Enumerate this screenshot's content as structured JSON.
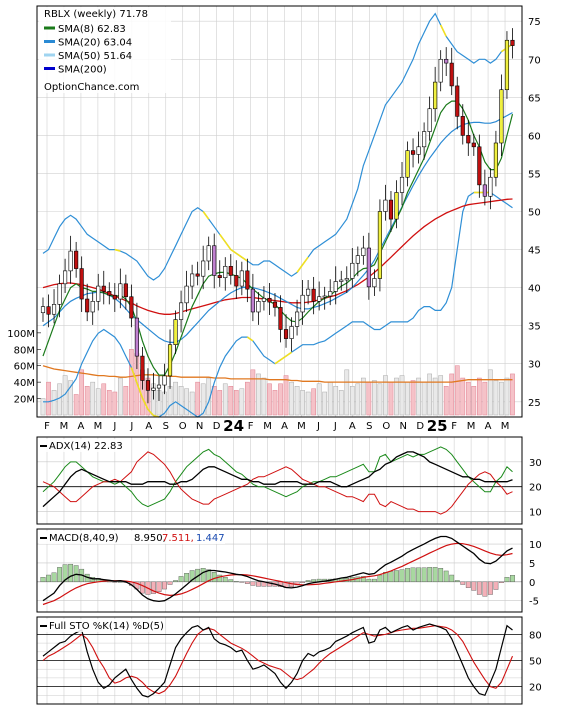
{
  "chart_data": {
    "type": "candlestick",
    "symbol": "RBLX (weekly) 71.78",
    "watermark": "OptionChance.com",
    "legend": [
      {
        "label": "SMA(8) 62.83",
        "color": "#1a7a1a"
      },
      {
        "label": "SMA(20) 63.04",
        "color": "#2a8ad4"
      },
      {
        "label": "SMA(50) 51.64",
        "color": "#9fd4f0"
      },
      {
        "label": "SMA(200)",
        "color": "#0000cc"
      }
    ],
    "x_ticks": [
      "F",
      "M",
      "A",
      "M",
      "J",
      "J",
      "A",
      "S",
      "O",
      "N",
      "D",
      "24",
      "F",
      "M",
      "A",
      "M",
      "J",
      "J",
      "A",
      "S",
      "O",
      "N",
      "D",
      "25",
      "F",
      "M",
      "A",
      "M"
    ],
    "x_bold_ticks": [
      "24",
      "25"
    ],
    "price_axis": {
      "ylim": [
        23,
        77
      ],
      "ticks": [
        25,
        30,
        35,
        40,
        45,
        50,
        55,
        60,
        65,
        70,
        75
      ]
    },
    "volume_axis": {
      "ylim": [
        0,
        140
      ],
      "ticks": [
        "100M",
        "80M",
        "60M",
        "40M",
        "20M"
      ],
      "tick_values": [
        100,
        80,
        60,
        40,
        20
      ]
    },
    "close": [
      37.5,
      36.5,
      37.8,
      40.5,
      42.2,
      44.8,
      42.5,
      38.5,
      36.8,
      38.2,
      40.2,
      39.5,
      39.0,
      38.5,
      40.5,
      38.8,
      36.0,
      31.0,
      27.8,
      26.5,
      26.8,
      27.2,
      28.4,
      32.5,
      35.8,
      38.0,
      40.2,
      41.8,
      41.5,
      43.5,
      45.5,
      41.6,
      41.3,
      42.8,
      41.6,
      40.2,
      42.2,
      39.8,
      36.8,
      38.2,
      38.6,
      38.1,
      37.4,
      34.5,
      33.3,
      34.9,
      36.8,
      39.0,
      39.8,
      38.2,
      38.8,
      38.9,
      39.5,
      40.8,
      41.0,
      41.2,
      43.2,
      44.2,
      45.2,
      40.1,
      41.2,
      50.0,
      51.5,
      49.0,
      52.5,
      54.5,
      58.0,
      57.5,
      58.5,
      60.5,
      63.5,
      67.0,
      70.0,
      69.5,
      66.5,
      62.5,
      60.0,
      59.0,
      58.5,
      53.5,
      52.0,
      54.5,
      59.0,
      66.0,
      72.5,
      71.8
    ],
    "sma8": [
      31.0,
      33.0,
      35.0,
      37.0,
      38.5,
      40.0,
      40.5,
      40.0,
      39.8,
      39.5,
      39.5,
      39.3,
      39.0,
      38.8,
      39.0,
      38.5,
      37.5,
      35.5,
      33.0,
      31.0,
      29.5,
      28.5,
      28.5,
      29.8,
      31.5,
      33.5,
      35.5,
      37.5,
      39.0,
      40.5,
      41.5,
      41.8,
      42.0,
      42.0,
      41.8,
      41.5,
      41.2,
      40.5,
      39.8,
      39.2,
      38.6,
      38.2,
      37.8,
      37.0,
      36.2,
      35.6,
      35.5,
      36.0,
      36.8,
      37.5,
      38.2,
      38.6,
      39.0,
      39.6,
      40.2,
      40.6,
      41.2,
      42.0,
      42.5,
      42.6,
      43.0,
      44.5,
      46.0,
      47.5,
      49.0,
      50.5,
      52.5,
      54.0,
      55.5,
      57.0,
      59.0,
      61.0,
      63.0,
      64.0,
      64.5,
      64.5,
      63.5,
      62.0,
      60.0,
      58.5,
      56.5,
      55.5,
      55.5,
      57.0,
      60.0,
      62.8
    ],
    "sma20": [
      35.0,
      35.5,
      36.0,
      36.8,
      37.6,
      38.2,
      38.6,
      38.9,
      39.2,
      39.3,
      39.4,
      39.3,
      39.0,
      38.6,
      38.0,
      37.2,
      36.4,
      35.8,
      35.2,
      34.6,
      34.0,
      33.4,
      33.0,
      32.8,
      32.8,
      33.2,
      33.8,
      34.6,
      35.4,
      36.2,
      37.0,
      37.6,
      38.2,
      38.8,
      39.3,
      39.7,
      40.0,
      40.1,
      40.0,
      39.8,
      39.6,
      39.3,
      39.0,
      38.6,
      38.2,
      37.8,
      37.4,
      37.2,
      37.2,
      37.4,
      37.6,
      37.9,
      38.2,
      38.6,
      39.0,
      39.4,
      40.0,
      40.8,
      41.6,
      42.5,
      43.6,
      45.0,
      46.4,
      47.8,
      49.2,
      50.6,
      52.0,
      53.4,
      54.7,
      55.9,
      57.0,
      58.0,
      59.0,
      59.8,
      60.5,
      61.0,
      61.4,
      61.6,
      61.7,
      61.7,
      61.6,
      61.6,
      61.8,
      62.2,
      62.6,
      63.0
    ],
    "sma50": [
      40.0,
      40.2,
      40.4,
      40.5,
      40.6,
      40.6,
      40.5,
      40.4,
      40.2,
      40.0,
      39.8,
      39.5,
      39.2,
      38.9,
      38.6,
      38.3,
      38.0,
      37.6,
      37.3,
      37.0,
      36.8,
      36.6,
      36.5,
      36.5,
      36.6,
      36.8,
      37.0,
      37.2,
      37.4,
      37.6,
      37.8,
      38.0,
      38.2,
      38.4,
      38.5,
      38.6,
      38.7,
      38.7,
      38.7,
      38.6,
      38.5,
      38.4,
      38.3,
      38.2,
      38.1,
      38.0,
      38.0,
      38.0,
      38.1,
      38.2,
      38.4,
      38.6,
      38.8,
      39.0,
      39.3,
      39.6,
      40.0,
      40.4,
      40.9,
      41.4,
      42.0,
      42.6,
      43.3,
      44.0,
      44.7,
      45.4,
      46.1,
      46.8,
      47.4,
      48.0,
      48.5,
      49.0,
      49.4,
      49.8,
      50.1,
      50.4,
      50.7,
      50.9,
      51.0,
      51.1,
      51.2,
      51.3,
      51.4,
      51.5,
      51.6,
      51.64
    ],
    "upper_band": [
      44.5,
      45.0,
      46.5,
      48.0,
      49.0,
      49.5,
      49.0,
      48.0,
      47.0,
      46.5,
      46.0,
      45.5,
      45.0,
      45.0,
      44.8,
      44.5,
      44.0,
      43.5,
      42.5,
      41.5,
      41.0,
      41.5,
      42.5,
      44.0,
      45.5,
      47.0,
      48.5,
      50.0,
      50.5,
      50.0,
      49.0,
      48.0,
      47.0,
      46.0,
      45.0,
      44.5,
      44.0,
      43.5,
      43.0,
      43.0,
      43.5,
      43.5,
      43.0,
      42.5,
      42.0,
      41.5,
      42.0,
      43.0,
      44.0,
      45.0,
      45.5,
      46.0,
      46.5,
      47.0,
      48.0,
      49.0,
      51.0,
      53.0,
      56.0,
      58.0,
      60.0,
      62.0,
      64.0,
      65.0,
      66.0,
      67.0,
      68.5,
      70.0,
      72.0,
      73.5,
      75.0,
      76.0,
      74.5,
      73.0,
      72.0,
      71.0,
      70.5,
      70.0,
      69.5,
      70.0,
      70.0,
      69.5,
      70.0,
      71.0,
      71.5,
      72.0
    ],
    "lower_band": [
      25.0,
      25.0,
      25.2,
      25.5,
      26.0,
      27.0,
      28.0,
      30.0,
      31.5,
      33.0,
      34.0,
      34.5,
      34.0,
      33.5,
      32.5,
      31.0,
      29.5,
      27.5,
      25.5,
      24.0,
      23.2,
      23.0,
      23.5,
      24.5,
      25.0,
      24.5,
      24.0,
      23.5,
      23.0,
      23.5,
      25.0,
      27.5,
      29.5,
      31.0,
      32.0,
      33.0,
      33.5,
      33.5,
      33.0,
      32.0,
      31.0,
      30.5,
      30.0,
      30.5,
      31.0,
      31.5,
      32.0,
      32.5,
      32.5,
      32.5,
      32.8,
      33.0,
      33.5,
      34.0,
      34.5,
      35.0,
      35.5,
      35.5,
      35.5,
      35.0,
      34.5,
      34.5,
      35.0,
      35.5,
      35.5,
      35.5,
      35.5,
      36.0,
      37.0,
      37.5,
      37.5,
      37.0,
      37.0,
      38.0,
      40.0,
      45.0,
      50.0,
      52.0,
      52.5,
      52.5,
      52.5,
      52.5,
      52.0,
      51.5,
      51.0,
      50.5
    ],
    "volume": [
      20,
      40,
      30,
      38,
      48,
      42,
      25,
      55,
      35,
      40,
      32,
      38,
      30,
      28,
      45,
      35,
      80,
      75,
      55,
      45,
      38,
      30,
      28,
      35,
      40,
      35,
      32,
      28,
      40,
      38,
      45,
      35,
      30,
      38,
      35,
      30,
      32,
      40,
      55,
      50,
      45,
      38,
      30,
      38,
      48,
      40,
      35,
      30,
      28,
      32,
      38,
      28,
      40,
      35,
      30,
      55,
      35,
      38,
      45,
      40,
      42,
      38,
      48,
      40,
      45,
      48,
      40,
      42,
      45,
      40,
      50,
      45,
      48,
      35,
      50,
      60,
      45,
      40,
      35,
      45,
      40,
      55,
      42,
      40,
      45,
      50
    ],
    "volume_avg": [
      60,
      58,
      56,
      55,
      54,
      53,
      52,
      51,
      50,
      49,
      48,
      48,
      47,
      47,
      46,
      46,
      47,
      48,
      49,
      49,
      49,
      48,
      48,
      47,
      47,
      46,
      46,
      46,
      46,
      46,
      46,
      45,
      45,
      45,
      44,
      44,
      44,
      44,
      44,
      44,
      44,
      43,
      43,
      43,
      43,
      42,
      42,
      41,
      41,
      41,
      41,
      40,
      40,
      40,
      40,
      40,
      40,
      40,
      40,
      40,
      40,
      40,
      40,
      40,
      40,
      40,
      40,
      40,
      40,
      40,
      40,
      40,
      40,
      40,
      40,
      41,
      42,
      43,
      43,
      43,
      43,
      43,
      43,
      43,
      43,
      43
    ],
    "adx": {
      "label": "ADX(14) 22.83",
      "ylim": [
        5,
        40
      ],
      "ticks": [
        10,
        20,
        30
      ],
      "adx": [
        12,
        14,
        16,
        18,
        21,
        24,
        26,
        27,
        26,
        25,
        24,
        23,
        22,
        22,
        22,
        22,
        21,
        21,
        21,
        22,
        22,
        22,
        22,
        21,
        21,
        22,
        22,
        23,
        25,
        27,
        28,
        28,
        27,
        26,
        25,
        24,
        23,
        23,
        22,
        22,
        21,
        21,
        21,
        22,
        22,
        22,
        22,
        21,
        21,
        21,
        22,
        22,
        22,
        21,
        20,
        20,
        21,
        22,
        23,
        24,
        26,
        27,
        29,
        30,
        32,
        33,
        34,
        34,
        33,
        32,
        30,
        29,
        28,
        27,
        26,
        25,
        24,
        24,
        23,
        23,
        22,
        22,
        22,
        22,
        22,
        22.8
      ],
      "plus_di": [
        18,
        20,
        22,
        25,
        28,
        30,
        30,
        28,
        26,
        24,
        23,
        22,
        22,
        21,
        22,
        20,
        18,
        15,
        13,
        12,
        13,
        14,
        15,
        18,
        22,
        25,
        28,
        30,
        32,
        34,
        35,
        33,
        32,
        30,
        28,
        26,
        25,
        23,
        21,
        20,
        20,
        19,
        18,
        17,
        16,
        17,
        18,
        20,
        21,
        22,
        22,
        23,
        24,
        24,
        25,
        26,
        27,
        28,
        29,
        26,
        26,
        32,
        33,
        30,
        31,
        32,
        33,
        32,
        33,
        33,
        34,
        35,
        36,
        35,
        33,
        30,
        27,
        24,
        22,
        20,
        18,
        18,
        22,
        24,
        28,
        26
      ],
      "minus_di": [
        22,
        21,
        20,
        18,
        16,
        14,
        14,
        16,
        18,
        20,
        21,
        22,
        22,
        23,
        22,
        24,
        26,
        30,
        32,
        34,
        33,
        31,
        29,
        26,
        22,
        19,
        17,
        15,
        14,
        13,
        13,
        15,
        16,
        17,
        18,
        19,
        20,
        21,
        23,
        24,
        24,
        25,
        26,
        27,
        28,
        27,
        25,
        23,
        22,
        21,
        20,
        20,
        19,
        18,
        17,
        16,
        16,
        15,
        14,
        17,
        17,
        13,
        12,
        14,
        13,
        12,
        11,
        11,
        10,
        10,
        10,
        10,
        9,
        10,
        12,
        15,
        18,
        21,
        23,
        25,
        26,
        25,
        22,
        20,
        17,
        18
      ]
    },
    "macd": {
      "label": "MACD(8,40,9)",
      "value": "8.950,",
      "signal_value": "7.511,",
      "hist_value": "1.447",
      "ylim": [
        -8,
        14
      ],
      "ticks": [
        10,
        5,
        0,
        -5
      ],
      "macd": [
        -5,
        -4,
        -3,
        -1,
        0.5,
        1.5,
        2,
        1.8,
        1.2,
        0.8,
        0.8,
        0.6,
        0.4,
        0.2,
        0.3,
        0,
        -0.8,
        -2,
        -3.5,
        -4.5,
        -5,
        -5.2,
        -5,
        -4.2,
        -3.2,
        -2,
        -0.8,
        0.5,
        1.5,
        2.5,
        3,
        3,
        2.8,
        2.6,
        2.3,
        2,
        1.8,
        1.4,
        0.8,
        0.3,
        0,
        -0.3,
        -0.6,
        -1,
        -1.5,
        -1.6,
        -1.4,
        -1,
        -0.5,
        -0.2,
        0,
        0.2,
        0.4,
        0.7,
        1,
        1.2,
        1.6,
        2,
        2.4,
        2,
        2.2,
        3.4,
        4.5,
        5.2,
        6,
        6.8,
        7.8,
        8.6,
        9.3,
        10,
        10.8,
        11.5,
        12,
        12,
        11.5,
        10.5,
        9.5,
        8.5,
        7.5,
        6,
        5,
        4.8,
        5.5,
        6.8,
        8.2,
        8.95
      ],
      "signal": [
        -6,
        -5.5,
        -5,
        -4.2,
        -3.3,
        -2.4,
        -1.6,
        -1,
        -0.5,
        -0.2,
        0,
        0.2,
        0.3,
        0.3,
        0.3,
        0.2,
        0,
        -0.4,
        -1,
        -1.7,
        -2.4,
        -3,
        -3.4,
        -3.6,
        -3.5,
        -3.2,
        -2.7,
        -2,
        -1.3,
        -0.5,
        0.3,
        0.9,
        1.3,
        1.6,
        1.8,
        1.9,
        1.9,
        1.8,
        1.6,
        1.3,
        1,
        0.7,
        0.4,
        0.1,
        -0.2,
        -0.5,
        -0.7,
        -0.8,
        -0.8,
        -0.7,
        -0.6,
        -0.4,
        -0.2,
        0,
        0.2,
        0.4,
        0.6,
        0.9,
        1.2,
        1.4,
        1.6,
        1.9,
        2.4,
        2.9,
        3.5,
        4.1,
        4.8,
        5.5,
        6.2,
        6.9,
        7.6,
        8.3,
        9,
        9.6,
        10,
        10.2,
        10.1,
        9.8,
        9.4,
        8.8,
        8.2,
        7.6,
        7.2,
        7,
        7.2,
        7.51
      ]
    },
    "sto": {
      "label": "Full STO %K(14) %D(5)",
      "ylim": [
        0,
        100
      ],
      "ticks": [
        80,
        50,
        20
      ],
      "k": [
        55,
        60,
        65,
        70,
        72,
        78,
        82,
        85,
        60,
        40,
        25,
        18,
        22,
        30,
        35,
        40,
        28,
        18,
        10,
        8,
        12,
        18,
        25,
        45,
        65,
        75,
        82,
        88,
        90,
        85,
        88,
        75,
        70,
        68,
        65,
        60,
        62,
        50,
        40,
        42,
        45,
        40,
        35,
        25,
        18,
        25,
        35,
        50,
        58,
        55,
        60,
        62,
        65,
        72,
        75,
        78,
        82,
        85,
        88,
        70,
        72,
        85,
        88,
        82,
        85,
        88,
        90,
        85,
        88,
        90,
        92,
        90,
        88,
        85,
        75,
        60,
        45,
        30,
        20,
        12,
        10,
        25,
        40,
        65,
        90,
        85
      ],
      "d": [
        50,
        55,
        58,
        62,
        66,
        70,
        75,
        80,
        75,
        65,
        52,
        42,
        30,
        24,
        26,
        30,
        32,
        30,
        25,
        18,
        14,
        12,
        15,
        22,
        32,
        45,
        58,
        70,
        80,
        85,
        87,
        85,
        80,
        75,
        70,
        67,
        64,
        60,
        55,
        50,
        47,
        44,
        42,
        40,
        35,
        30,
        28,
        30,
        35,
        40,
        47,
        53,
        58,
        62,
        66,
        70,
        74,
        78,
        82,
        80,
        78,
        79,
        80,
        82,
        84,
        85,
        86,
        87,
        87,
        88,
        89,
        90,
        89,
        88,
        85,
        80,
        72,
        60,
        48,
        38,
        28,
        20,
        18,
        25,
        40,
        55
      ]
    }
  }
}
